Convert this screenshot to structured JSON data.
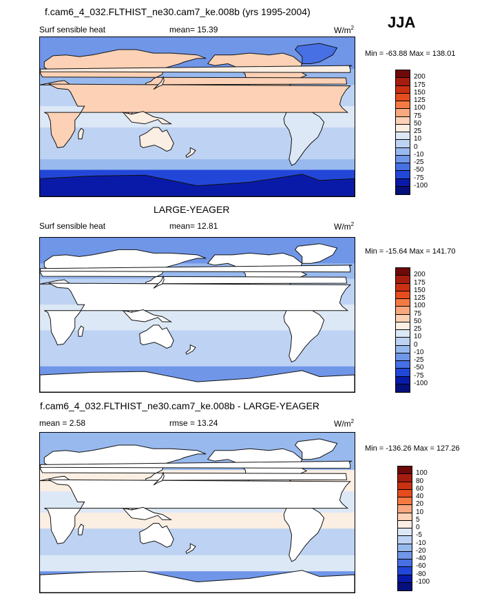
{
  "season": "JJA",
  "colors": {
    "land": "#ffffff",
    "coast": "#111111"
  },
  "panels": [
    {
      "title": "f.cam6_4_032.FLTHIST_ne30.cam7_ke.008b (yrs 1995-2004)",
      "left_label": "Surf sensible heat",
      "center_label": "mean=  15.39",
      "units": "W/m",
      "units_sup": "2",
      "minmax": "Min = -63.88 Max = 138.01",
      "colorbar": {
        "labels": [
          "200",
          "175",
          "150",
          "125",
          "100",
          "75",
          "50",
          "25",
          "10",
          "0",
          "-10",
          "-25",
          "-50",
          "-75",
          "-100"
        ],
        "colors": [
          "#6e0a0a",
          "#a51d0f",
          "#c93112",
          "#e54d1e",
          "#f47a44",
          "#f9a77e",
          "#fcd1b5",
          "#fbeee2",
          "#dde8f6",
          "#bed3f3",
          "#98b9ee",
          "#7096e8",
          "#4670e3",
          "#2247d8",
          "#0a1aa8",
          "#05107a"
        ]
      },
      "chart_data": {
        "type": "heatmap",
        "title": "f.cam6_4_032.FLTHIST_ne30.cam7_ke.008b (yrs 1995-2004)",
        "variable": "Surf sensible heat",
        "mean": 15.39,
        "min": -63.88,
        "max": 138.01,
        "units": "W/m2",
        "levels": [
          -100,
          -75,
          -50,
          -25,
          -10,
          0,
          10,
          25,
          50,
          75,
          100,
          125,
          150,
          175,
          200
        ],
        "field": "model"
      }
    },
    {
      "title": "LARGE-YEAGER",
      "left_label": "Surf sensible heat",
      "center_label": "mean=  12.81",
      "units": "W/m",
      "units_sup": "2",
      "minmax": "Min = -15.64 Max = 141.70",
      "colorbar": {
        "labels": [
          "200",
          "175",
          "150",
          "125",
          "100",
          "75",
          "50",
          "25",
          "10",
          "0",
          "-10",
          "-25",
          "-50",
          "-75",
          "-100"
        ],
        "colors": [
          "#6e0a0a",
          "#a51d0f",
          "#c93112",
          "#e54d1e",
          "#f47a44",
          "#f9a77e",
          "#fcd1b5",
          "#fbeee2",
          "#dde8f6",
          "#bed3f3",
          "#98b9ee",
          "#7096e8",
          "#4670e3",
          "#2247d8",
          "#0a1aa8",
          "#05107a"
        ]
      },
      "chart_data": {
        "type": "heatmap",
        "title": "LARGE-YEAGER",
        "variable": "Surf sensible heat",
        "mean": 12.81,
        "min": -15.64,
        "max": 141.7,
        "units": "W/m2",
        "levels": [
          -100,
          -75,
          -50,
          -25,
          -10,
          0,
          10,
          25,
          50,
          75,
          100,
          125,
          150,
          175,
          200
        ],
        "field": "obs"
      }
    },
    {
      "title": "f.cam6_4_032.FLTHIST_ne30.cam7_ke.008b - LARGE-YEAGER",
      "left_label": "mean =   2.58",
      "center_label": "rmse =  13.24",
      "units": "W/m",
      "units_sup": "2",
      "minmax": "Min = -136.26 Max = 127.26",
      "colorbar": {
        "labels": [
          "100",
          "80",
          "60",
          "40",
          "20",
          "10",
          "5",
          "0",
          "-5",
          "-10",
          "-20",
          "-40",
          "-60",
          "-80",
          "-100"
        ],
        "colors": [
          "#6e0a0a",
          "#a51d0f",
          "#c93112",
          "#e54d1e",
          "#f47a44",
          "#f9a77e",
          "#fcd1b5",
          "#fbeee2",
          "#dde8f6",
          "#bed3f3",
          "#98b9ee",
          "#7096e8",
          "#4670e3",
          "#2247d8",
          "#0a1aa8",
          "#05107a"
        ]
      },
      "chart_data": {
        "type": "heatmap",
        "title": "f.cam6_4_032.FLTHIST_ne30.cam7_ke.008b - LARGE-YEAGER",
        "variable": "",
        "mean": 2.58,
        "rmse": 13.24,
        "min": -136.26,
        "max": 127.26,
        "units": "W/m2",
        "levels": [
          -100,
          -80,
          -60,
          -40,
          -20,
          -10,
          -5,
          0,
          5,
          10,
          20,
          40,
          60,
          80,
          100
        ],
        "field": "diff"
      }
    }
  ]
}
